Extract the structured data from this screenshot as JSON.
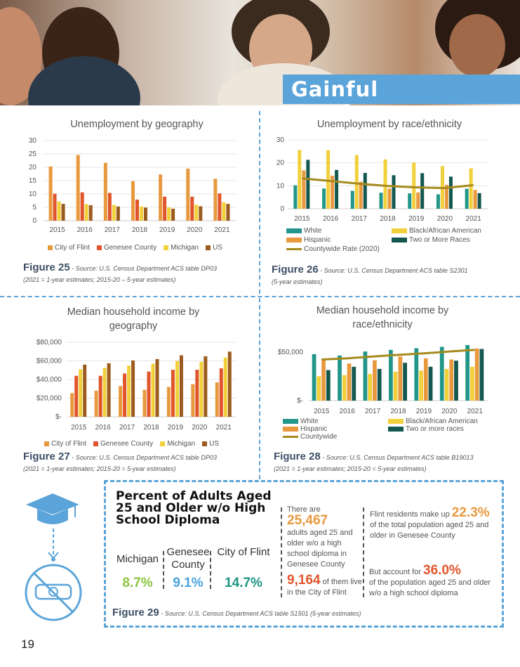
{
  "header": {
    "banner": "Gainful Employment"
  },
  "figures": {
    "f25": {
      "label": "Figure 25",
      "source": " - Source: U.S. Census Department ACS table DP03",
      "note": "(2021 = 1-year estimates; 2015-20 – 5-year estimates)"
    },
    "f26": {
      "label": "Figure 26",
      "source": " - Source: U.S. Census Department ACS table S2301",
      "note": "(5-year estimates)"
    },
    "f27": {
      "label": "Figure 27",
      "source": " - Source: U.S. Census Department ACS table DP03",
      "note": "(2021 = 1-year estimates; 2015-20 = 5-year estimates)"
    },
    "f28": {
      "label": "Figure 28",
      "source": " - Source: U.S. Census Department ACS table B19013",
      "note": "(2021 = 1-year estimates; 2015-20 = 5-year estimates)"
    },
    "f29": {
      "label": "Figure 29",
      "source": " - Source: U.S. Census Department ACS table S1501 (5-year estimates)"
    }
  },
  "chart_data": [
    {
      "type": "bar",
      "title": "Unemployment by geography",
      "categories": [
        "2015",
        "2016",
        "2017",
        "2018",
        "2019",
        "2020",
        "2021"
      ],
      "ylim": [
        0,
        30
      ],
      "yticks": [
        "0",
        "5",
        "10",
        "15",
        "20",
        "25",
        "30"
      ],
      "ytick_values": [
        0,
        5,
        10,
        15,
        20,
        25,
        30
      ],
      "grid": true,
      "legend": "bottom",
      "series": [
        {
          "name": "City of Flint",
          "color": "#E8993E",
          "values": [
            20.3,
            24.6,
            21.7,
            14.8,
            17.3,
            19.5,
            15.7
          ]
        },
        {
          "name": "Genesee County",
          "color": "#E0552B",
          "values": [
            10.1,
            10.6,
            10.4,
            7.9,
            9.0,
            9.0,
            10.2
          ]
        },
        {
          "name": "Michigan",
          "color": "#F2D03B",
          "values": [
            7.2,
            6.2,
            5.9,
            5.3,
            5.0,
            6.0,
            6.9
          ]
        },
        {
          "name": "US",
          "color": "#9C5B1E",
          "values": [
            6.3,
            5.8,
            5.3,
            4.9,
            4.5,
            5.4,
            6.3
          ]
        }
      ]
    },
    {
      "type": "bar",
      "title": "Unemployment by race/ethnicity",
      "categories": [
        "2015",
        "2016",
        "2017",
        "2018",
        "2019",
        "2020",
        "2021"
      ],
      "ylim": [
        0,
        30
      ],
      "yticks": [
        "0",
        "10",
        "20",
        "30"
      ],
      "ytick_values": [
        0,
        10,
        20,
        30
      ],
      "grid": true,
      "legend": "bottom",
      "series": [
        {
          "name": "White",
          "color": "#22968A",
          "values": [
            10.2,
            8.8,
            7.8,
            7.0,
            6.7,
            6.3,
            8.7
          ]
        },
        {
          "name": "Black/African American",
          "color": "#F2D03B",
          "values": [
            25.6,
            25.5,
            23.4,
            21.5,
            20.1,
            18.6,
            17.6
          ]
        },
        {
          "name": "Hispanic",
          "color": "#E8993E",
          "values": [
            16.7,
            14.4,
            11.8,
            8.8,
            7.1,
            10.4,
            8.2
          ]
        },
        {
          "name": "Two or More Races",
          "color": "#14574F",
          "values": [
            21.3,
            16.9,
            15.6,
            14.6,
            15.5,
            14.0,
            6.8
          ]
        }
      ],
      "line": {
        "name": "Countywide Rate (2020)",
        "color": "#A68A1E",
        "values": [
          13.2,
          12.1,
          10.9,
          9.9,
          9.3,
          9.0,
          10.3
        ]
      }
    },
    {
      "type": "bar",
      "title": "Median household income by geography",
      "categories": [
        "2015",
        "2016",
        "2017",
        "2018",
        "2019",
        "2020",
        "2021"
      ],
      "ylim": [
        0,
        80000
      ],
      "yticks": [
        "$-",
        "$20,000",
        "$40,000",
        "$60,000",
        "$80,000"
      ],
      "ytick_values": [
        0,
        20000,
        40000,
        60000,
        80000
      ],
      "grid": true,
      "legend": "bottom",
      "series": [
        {
          "name": "City of Flint",
          "color": "#E8993E",
          "values": [
            25500,
            28000,
            33000,
            29000,
            32000,
            35000,
            37000
          ]
        },
        {
          "name": "Genesee County",
          "color": "#E0552B",
          "values": [
            44000,
            44000,
            46500,
            48500,
            50500,
            50500,
            52000
          ]
        },
        {
          "name": "Michigan",
          "color": "#F2D03B",
          "values": [
            51000,
            52500,
            55000,
            57000,
            60000,
            59000,
            63500
          ]
        },
        {
          "name": "US",
          "color": "#9C5B1E",
          "values": [
            56000,
            57500,
            60500,
            62000,
            66000,
            65000,
            70000
          ]
        }
      ]
    },
    {
      "type": "bar",
      "title": "Median household income by race/ethnicity",
      "categories": [
        "2015",
        "2016",
        "2017",
        "2018",
        "2019",
        "2020",
        "2021"
      ],
      "ylim": [
        0,
        60000
      ],
      "yticks": [
        "$-",
        "$50,000"
      ],
      "ytick_values": [
        0,
        50000
      ],
      "grid": false,
      "legend": "bottom",
      "series": [
        {
          "name": "White",
          "color": "#22968A",
          "values": [
            47800,
            46400,
            50500,
            52200,
            53900,
            55300,
            57200
          ]
        },
        {
          "name": "Black/African American",
          "color": "#F2D03B",
          "values": [
            25100,
            26300,
            27500,
            29700,
            30900,
            32600,
            34800
          ]
        },
        {
          "name": "Hispanic",
          "color": "#E8993E",
          "values": [
            42800,
            38200,
            41500,
            45400,
            43500,
            42300,
            53600
          ]
        },
        {
          "name": "Two or more races",
          "color": "#14574F",
          "values": [
            31400,
            34800,
            32600,
            38900,
            34800,
            41100,
            53100
          ]
        }
      ],
      "line": {
        "name": "Countywide",
        "color": "#A68A1E",
        "values": [
          42300,
          43500,
          45400,
          47100,
          48600,
          50500,
          52200
        ]
      }
    }
  ],
  "diploma": {
    "title": "Percent of Adults Aged 25 and Older w/o High School Diploma",
    "geos": [
      {
        "name": "Michigan",
        "value": "8.7%",
        "color": "#8CC63F"
      },
      {
        "name": "Genesee County",
        "value": "9.1%",
        "color": "#4BA3DD"
      },
      {
        "name": "City of Flint",
        "value": "14.7%",
        "color": "#1E9584"
      }
    ],
    "stat1_pre": "There are ",
    "stat1_num": "25,467",
    "stat1_post": "adults aged 25 and older w/o a high school diploma in Genesee County",
    "stat2_num": "9,164",
    "stat2_post": " of them live in the City of Flint",
    "stat3_pre": "Flint residents make up ",
    "stat3_num": "22.3%",
    "stat3_post": "of the total population aged 25 and older in Genesee County",
    "stat4_pre": "But account for ",
    "stat4_num": "36.0%",
    "stat4_post": "of the population aged 25 and older w/o a high school diploma"
  },
  "page_number": "19"
}
